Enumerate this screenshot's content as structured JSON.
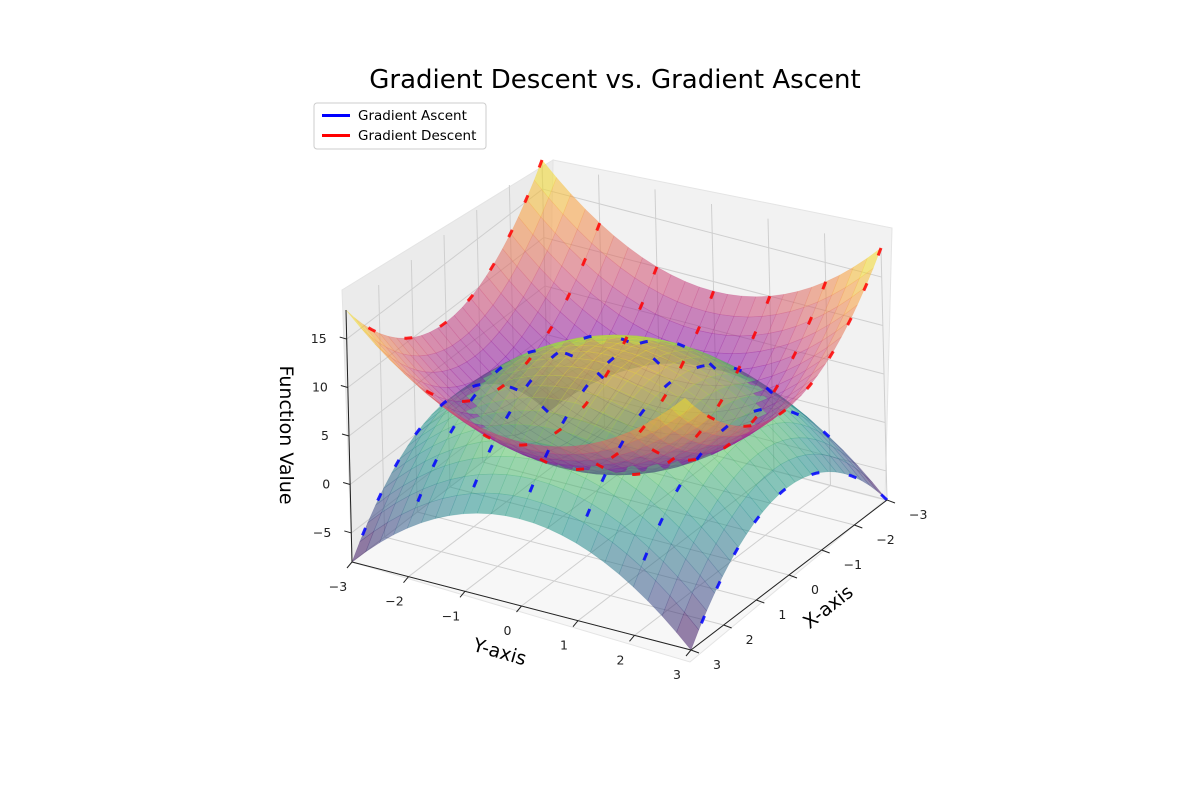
{
  "chart_data": {
    "type": "surface3d",
    "title": "Gradient Descent vs. Gradient Ascent",
    "xlabel": "X-axis",
    "ylabel": "Y-axis",
    "zlabel": "Function Value",
    "x_ticks": [
      "−3",
      "−2",
      "−1",
      "0",
      "1",
      "2",
      "3"
    ],
    "y_ticks": [
      "−3",
      "−2",
      "−1",
      "0",
      "1",
      "2",
      "3"
    ],
    "z_ticks": [
      "−5",
      "0",
      "5",
      "10",
      "15"
    ],
    "xlim": [
      -3,
      3
    ],
    "ylim": [
      -3,
      3
    ],
    "zlim": [
      -8,
      18
    ],
    "grid": true,
    "legend_position": "top-left",
    "series": [
      {
        "name": "Gradient Ascent",
        "color": "#0000ff",
        "function": "-(x^2 + y^2) + 10",
        "colormap": "viridis",
        "surface_range": [
          -8,
          10
        ]
      },
      {
        "name": "Gradient Descent",
        "color": "#ff0000",
        "function": "x^2 + y^2",
        "colormap": "plasma",
        "surface_range": [
          0,
          18
        ]
      }
    ]
  }
}
